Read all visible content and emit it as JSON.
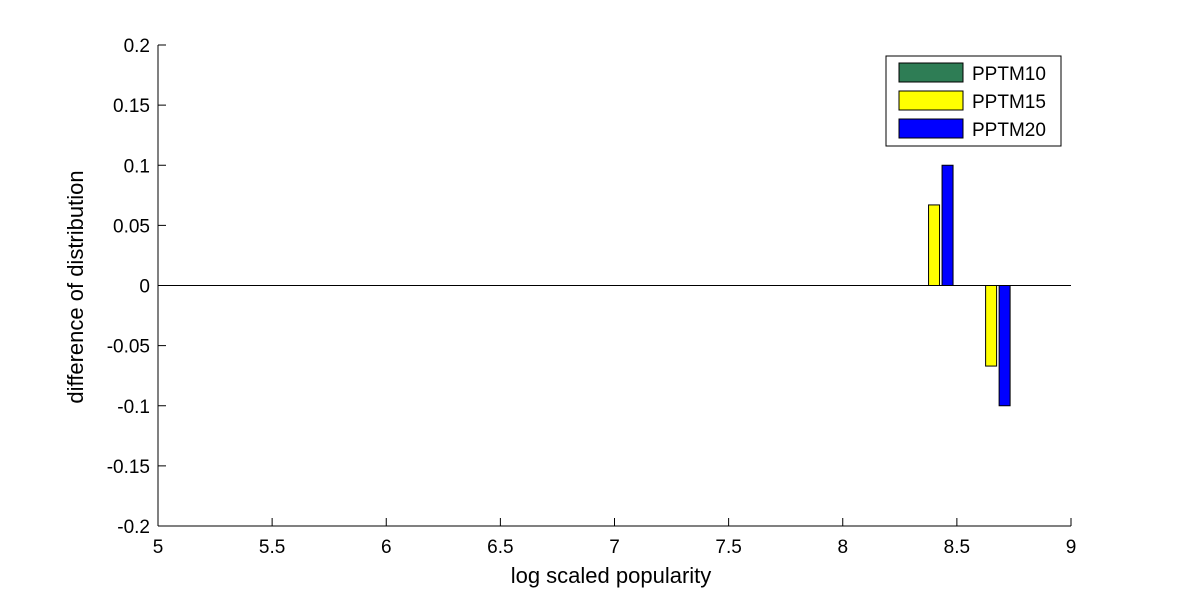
{
  "chart_data": {
    "type": "bar",
    "title": "",
    "xlabel": "log scaled popularity",
    "ylabel": "difference of distribution",
    "xlim": [
      5,
      9
    ],
    "ylim": [
      -0.2,
      0.2
    ],
    "xticks": [
      "5",
      "5.5",
      "6",
      "6.5",
      "7",
      "7.5",
      "8",
      "8.5",
      "9"
    ],
    "yticks": [
      "0.2",
      "0.15",
      "0.1",
      "0.05",
      "0",
      "-0.05",
      "-0.1",
      "-0.15",
      "-0.2"
    ],
    "grid": false,
    "legend_position": "top-right",
    "x": [
      8.4,
      8.65
    ],
    "series": [
      {
        "name": "PPTM10",
        "color": "#2e7d55",
        "values": [
          0,
          0
        ]
      },
      {
        "name": "PPTM15",
        "color": "#ffff00",
        "values": [
          0.067,
          -0.067
        ]
      },
      {
        "name": "PPTM20",
        "color": "#0000ff",
        "values": [
          0.1,
          -0.1
        ]
      }
    ]
  }
}
